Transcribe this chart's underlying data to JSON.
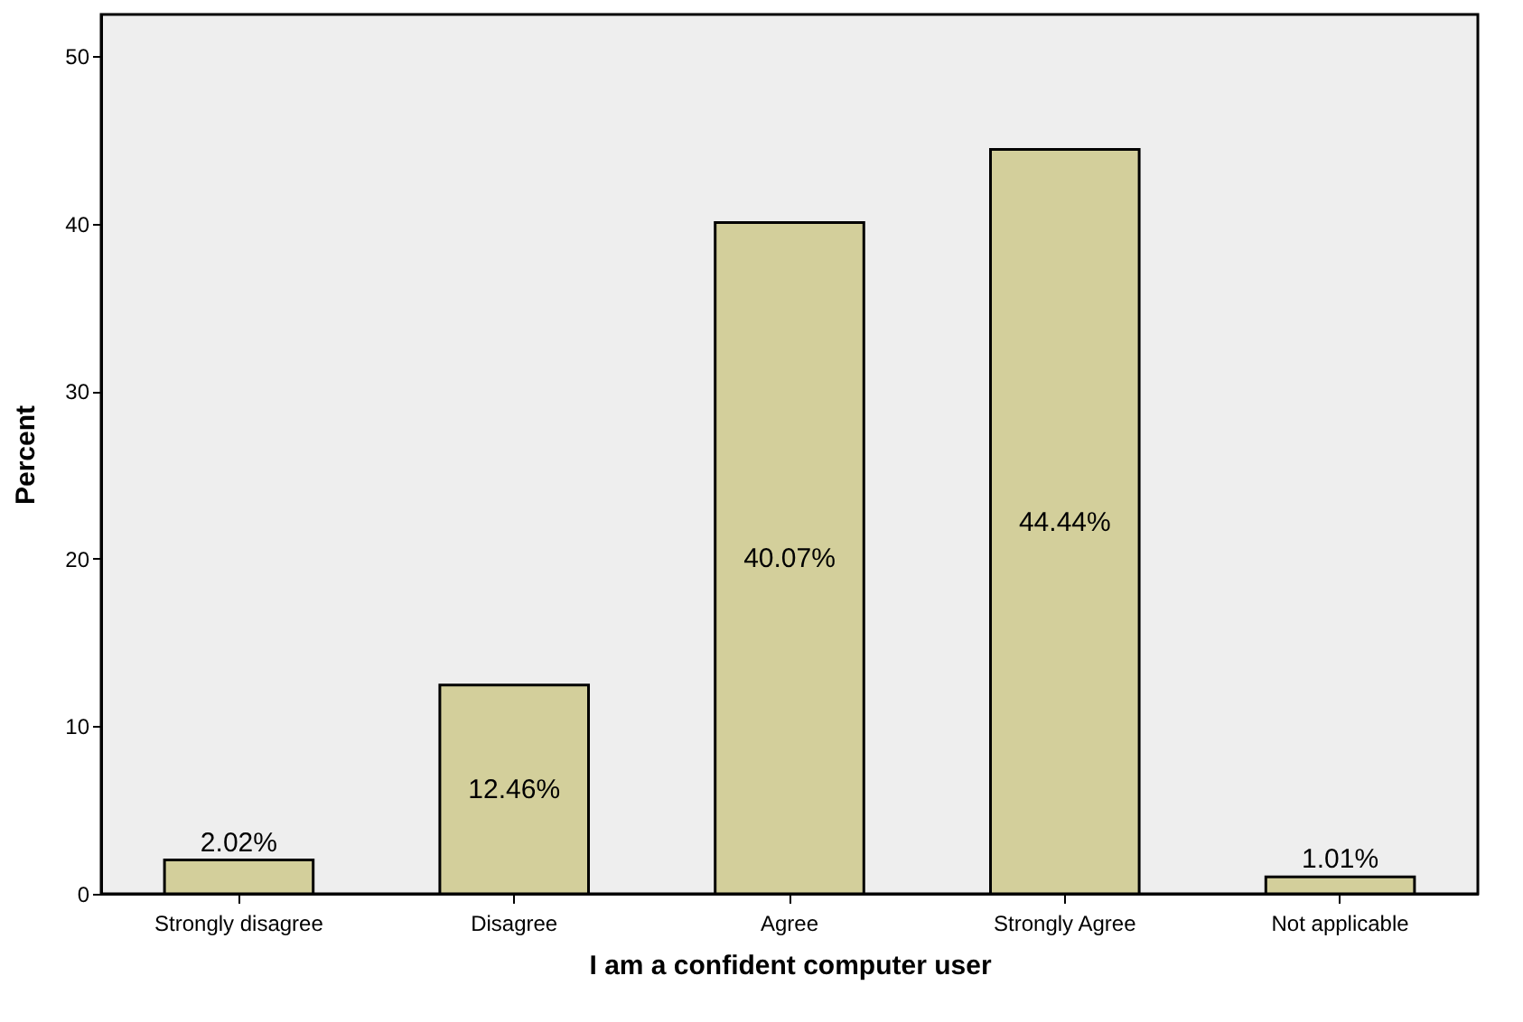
{
  "chart_data": {
    "type": "bar",
    "xlabel": "I am a confident computer user",
    "ylabel": "Percent",
    "categories": [
      "Strongly disagree",
      "Disagree",
      "Agree",
      "Strongly Agree",
      "Not applicable"
    ],
    "values": [
      2.02,
      12.46,
      40.07,
      44.44,
      1.01
    ],
    "value_labels": [
      "2.02%",
      "12.46%",
      "40.07%",
      "44.44%",
      "1.01%"
    ],
    "color": "#d3cf9b",
    "ylim": [
      0,
      52.5
    ],
    "yticks": [
      0,
      10,
      20,
      30,
      40,
      50
    ],
    "grid": false
  }
}
